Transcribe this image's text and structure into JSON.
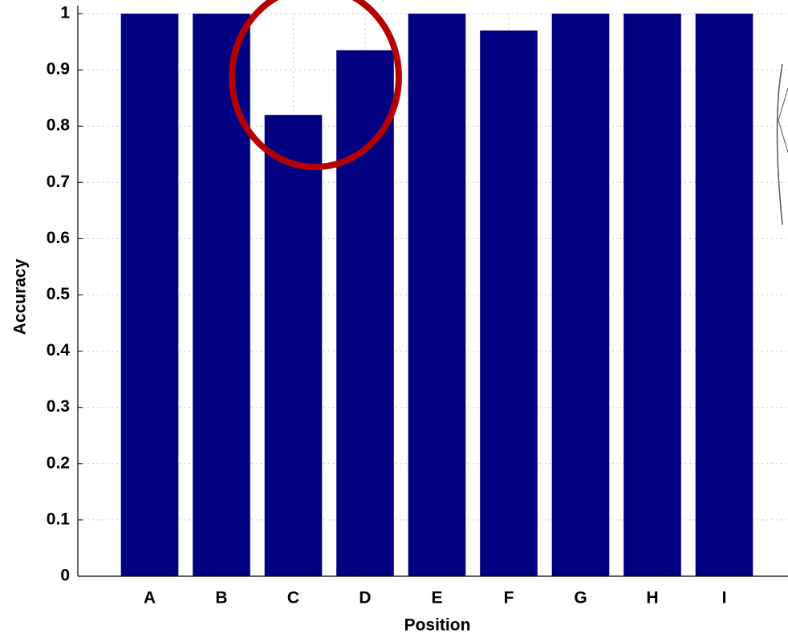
{
  "chart_data": {
    "type": "bar",
    "x_label": "Position",
    "y_label": "Accuracy",
    "categories": [
      "A",
      "B",
      "C",
      "D",
      "E",
      "F",
      "G",
      "H",
      "I"
    ],
    "values": [
      1,
      1,
      0.82,
      0.935,
      1,
      0.97,
      1,
      1,
      1
    ],
    "color": "#000080",
    "ylim": [
      0,
      1
    ],
    "yticks": [
      0,
      0.1,
      0.2,
      0.3,
      0.4,
      0.5,
      0.6,
      0.7,
      0.8,
      0.9,
      1
    ],
    "grid": true
  }
}
